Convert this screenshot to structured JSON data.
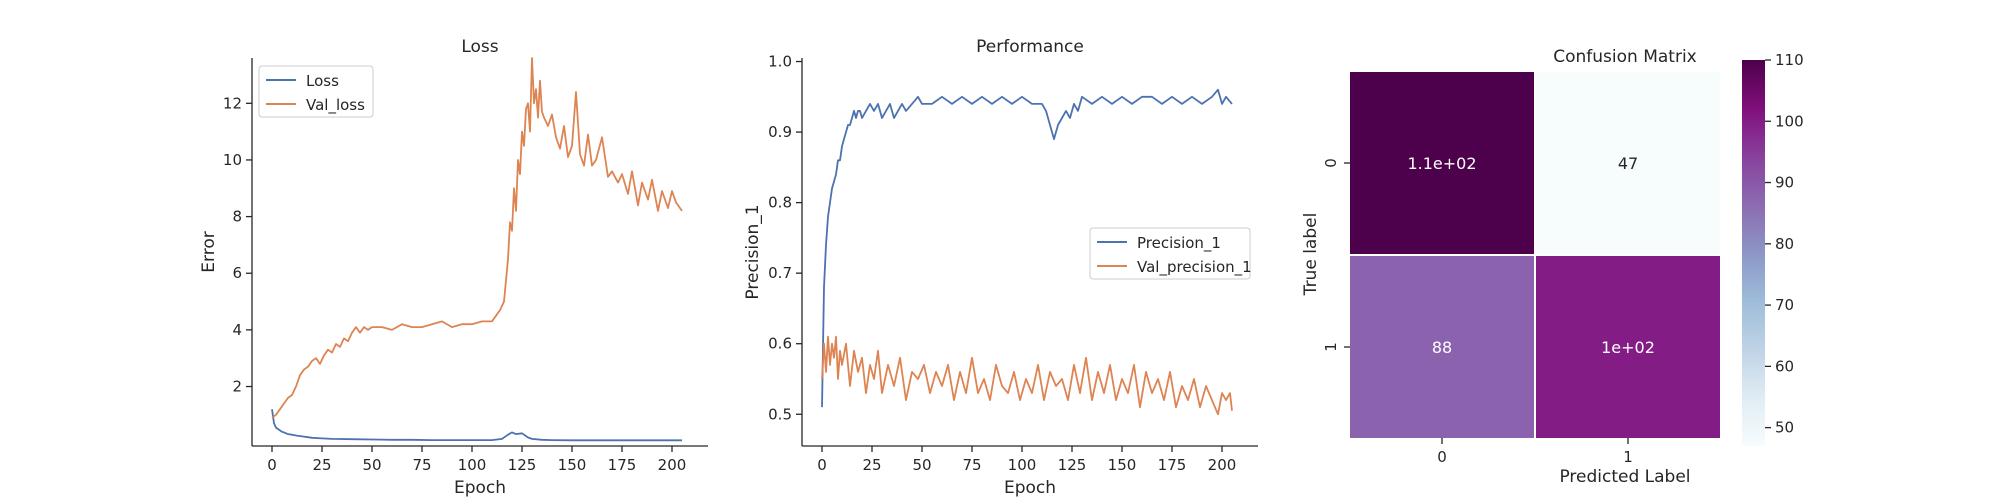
{
  "chart_data": [
    {
      "type": "line",
      "title": "Loss",
      "xlabel": "Epoch",
      "ylabel": "Error",
      "xlim": [
        -10,
        218
      ],
      "ylim": [
        -0.1,
        13.6
      ],
      "xticks": [
        0,
        25,
        50,
        75,
        100,
        125,
        150,
        175,
        200
      ],
      "yticks": [
        2,
        4,
        6,
        8,
        10,
        12
      ],
      "legend_position": "top-left",
      "series": [
        {
          "name": "Loss",
          "color": "#4c72b0",
          "x": [
            0,
            1,
            2,
            3,
            4,
            5,
            6,
            7,
            8,
            10,
            12,
            15,
            18,
            20,
            25,
            30,
            40,
            50,
            60,
            70,
            80,
            90,
            100,
            110,
            115,
            118,
            120,
            122,
            125,
            128,
            130,
            135,
            140,
            150,
            160,
            170,
            180,
            190,
            200,
            205
          ],
          "values": [
            1.2,
            0.7,
            0.55,
            0.5,
            0.45,
            0.4,
            0.38,
            0.35,
            0.32,
            0.3,
            0.27,
            0.24,
            0.21,
            0.19,
            0.17,
            0.15,
            0.14,
            0.13,
            0.12,
            0.12,
            0.11,
            0.11,
            0.11,
            0.11,
            0.15,
            0.3,
            0.38,
            0.32,
            0.35,
            0.2,
            0.15,
            0.12,
            0.11,
            0.1,
            0.1,
            0.1,
            0.1,
            0.1,
            0.1,
            0.1
          ]
        },
        {
          "name": "Val_loss",
          "color": "#dd8452",
          "x": [
            0,
            2,
            4,
            6,
            8,
            10,
            12,
            14,
            16,
            18,
            20,
            22,
            24,
            26,
            28,
            30,
            32,
            34,
            36,
            38,
            40,
            42,
            44,
            46,
            48,
            50,
            55,
            60,
            65,
            70,
            75,
            80,
            85,
            90,
            95,
            100,
            105,
            110,
            112,
            114,
            116,
            118,
            119,
            120,
            121,
            122,
            123,
            124,
            125,
            126,
            127,
            128,
            129,
            130,
            131,
            132,
            133,
            134,
            135,
            136,
            138,
            140,
            142,
            144,
            146,
            148,
            150,
            152,
            154,
            156,
            158,
            160,
            162,
            165,
            168,
            170,
            173,
            175,
            178,
            180,
            183,
            185,
            188,
            190,
            193,
            195,
            198,
            200,
            202,
            205
          ],
          "values": [
            0.9,
            1.0,
            1.2,
            1.4,
            1.6,
            1.7,
            2.0,
            2.4,
            2.6,
            2.7,
            2.9,
            3.0,
            2.8,
            3.1,
            3.3,
            3.2,
            3.5,
            3.4,
            3.7,
            3.6,
            3.9,
            4.1,
            3.9,
            4.1,
            4.0,
            4.1,
            4.1,
            4.0,
            4.2,
            4.1,
            4.1,
            4.2,
            4.3,
            4.1,
            4.2,
            4.2,
            4.3,
            4.3,
            4.5,
            4.7,
            5.0,
            6.5,
            7.8,
            7.5,
            9.0,
            8.2,
            10.0,
            9.5,
            11.0,
            10.5,
            11.8,
            12.0,
            11.0,
            13.6,
            12.0,
            12.5,
            11.5,
            12.8,
            11.7,
            11.5,
            11.2,
            11.6,
            10.8,
            10.4,
            11.2,
            10.1,
            10.5,
            12.4,
            10.2,
            9.8,
            10.9,
            9.8,
            10.0,
            10.8,
            9.4,
            9.6,
            9.2,
            9.5,
            8.8,
            9.6,
            8.4,
            9.2,
            8.6,
            9.3,
            8.2,
            8.9,
            8.3,
            8.9,
            8.5,
            8.2
          ]
        }
      ]
    },
    {
      "type": "line",
      "title": "Performance",
      "xlabel": "Epoch",
      "ylabel": "Precision_1",
      "xlim": [
        -10,
        218
      ],
      "ylim": [
        0.455,
        1.005
      ],
      "xticks": [
        0,
        25,
        50,
        75,
        100,
        125,
        150,
        175,
        200
      ],
      "yticks": [
        0.5,
        0.6,
        0.7,
        0.8,
        0.9,
        1.0
      ],
      "legend_position": "center-right",
      "series": [
        {
          "name": "Precision_1",
          "color": "#4c72b0",
          "x": [
            0,
            1,
            2,
            3,
            4,
            5,
            6,
            7,
            8,
            9,
            10,
            11,
            12,
            13,
            14,
            15,
            16,
            17,
            18,
            19,
            20,
            22,
            24,
            26,
            28,
            30,
            32,
            34,
            36,
            38,
            40,
            42,
            45,
            48,
            50,
            55,
            60,
            65,
            70,
            75,
            80,
            85,
            90,
            95,
            100,
            105,
            110,
            112,
            114,
            116,
            118,
            120,
            122,
            124,
            126,
            128,
            130,
            135,
            140,
            145,
            150,
            155,
            160,
            165,
            170,
            175,
            180,
            185,
            190,
            195,
            198,
            200,
            202,
            205
          ],
          "values": [
            0.51,
            0.68,
            0.74,
            0.78,
            0.8,
            0.82,
            0.83,
            0.84,
            0.86,
            0.86,
            0.88,
            0.89,
            0.9,
            0.91,
            0.91,
            0.92,
            0.93,
            0.92,
            0.93,
            0.93,
            0.92,
            0.93,
            0.94,
            0.93,
            0.94,
            0.92,
            0.93,
            0.94,
            0.92,
            0.93,
            0.94,
            0.93,
            0.94,
            0.95,
            0.94,
            0.94,
            0.95,
            0.94,
            0.95,
            0.94,
            0.95,
            0.94,
            0.95,
            0.94,
            0.95,
            0.94,
            0.94,
            0.93,
            0.91,
            0.89,
            0.91,
            0.92,
            0.93,
            0.92,
            0.94,
            0.93,
            0.95,
            0.94,
            0.95,
            0.94,
            0.95,
            0.94,
            0.95,
            0.95,
            0.94,
            0.95,
            0.94,
            0.95,
            0.94,
            0.95,
            0.96,
            0.94,
            0.95,
            0.94
          ]
        },
        {
          "name": "Val_precision_1",
          "color": "#dd8452",
          "x": [
            0,
            1,
            2,
            3,
            4,
            5,
            6,
            7,
            8,
            9,
            10,
            12,
            14,
            16,
            18,
            20,
            22,
            24,
            26,
            28,
            30,
            33,
            36,
            39,
            42,
            45,
            48,
            51,
            54,
            57,
            60,
            63,
            66,
            69,
            72,
            75,
            78,
            81,
            84,
            87,
            90,
            93,
            96,
            99,
            102,
            105,
            108,
            111,
            114,
            117,
            120,
            123,
            126,
            129,
            132,
            135,
            138,
            141,
            144,
            147,
            150,
            153,
            156,
            159,
            162,
            165,
            168,
            171,
            174,
            177,
            180,
            183,
            186,
            189,
            192,
            195,
            198,
            200,
            202,
            204,
            205
          ],
          "values": [
            0.55,
            0.6,
            0.56,
            0.61,
            0.57,
            0.6,
            0.58,
            0.61,
            0.55,
            0.59,
            0.57,
            0.6,
            0.54,
            0.59,
            0.56,
            0.58,
            0.53,
            0.57,
            0.55,
            0.59,
            0.53,
            0.57,
            0.54,
            0.58,
            0.52,
            0.56,
            0.55,
            0.57,
            0.53,
            0.56,
            0.54,
            0.57,
            0.52,
            0.56,
            0.53,
            0.58,
            0.53,
            0.55,
            0.52,
            0.57,
            0.54,
            0.53,
            0.56,
            0.52,
            0.55,
            0.53,
            0.57,
            0.52,
            0.56,
            0.54,
            0.55,
            0.52,
            0.57,
            0.53,
            0.58,
            0.52,
            0.56,
            0.53,
            0.57,
            0.52,
            0.55,
            0.53,
            0.57,
            0.51,
            0.56,
            0.53,
            0.55,
            0.52,
            0.56,
            0.51,
            0.54,
            0.52,
            0.55,
            0.51,
            0.54,
            0.52,
            0.5,
            0.53,
            0.52,
            0.53,
            0.505
          ]
        }
      ]
    },
    {
      "type": "heatmap",
      "title": "Confusion Matrix",
      "xlabel": "Predicted Label",
      "ylabel": "True label",
      "x_categories": [
        "0",
        "1"
      ],
      "y_categories": [
        "0",
        "1"
      ],
      "values": [
        [
          110,
          47
        ],
        [
          88,
          100
        ]
      ],
      "annotations": [
        [
          "1.1e+02",
          "47"
        ],
        [
          "88",
          "1e+02"
        ]
      ],
      "colormap": "BuPu",
      "colorbar": {
        "range": [
          47,
          110
        ],
        "ticks": [
          50,
          60,
          70,
          80,
          90,
          100,
          110
        ]
      }
    }
  ]
}
